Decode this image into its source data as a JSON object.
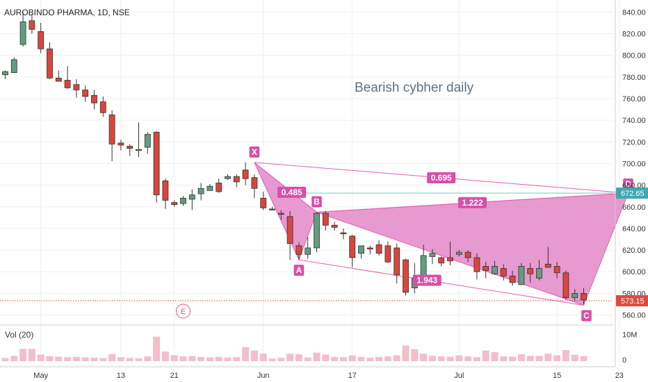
{
  "header": {
    "title": "AUROBINDO PHARMA, 1D, NSE"
  },
  "annotation_text": "Bearish cybher daily",
  "volume_label": "Vol (20)",
  "volume_axis": [
    "10M",
    "0"
  ],
  "price_tags": {
    "d_level": "672.65",
    "last_close": "573.15"
  },
  "colors": {
    "up": "#5f9e7e",
    "down": "#d8463c",
    "pattern_fill": "#e07ec3",
    "pattern_stroke": "#e05fad",
    "d_line": "#7ad1cf",
    "last_line": "#e53935",
    "grid": "#eef0f3",
    "volume": "#f2bfcb"
  },
  "chart_data": {
    "type": "candlestick",
    "title": "AUROBINDO PHARMA, 1D, NSE",
    "y_axis": {
      "ticks": [
        560,
        580,
        600,
        620,
        640,
        660,
        680,
        700,
        720,
        740,
        760,
        780,
        800,
        820,
        840
      ],
      "range": [
        552,
        846
      ],
      "side": "right"
    },
    "x_axis": {
      "ticks": [
        {
          "label": "May",
          "index": 4
        },
        {
          "label": "13",
          "index": 13
        },
        {
          "label": "21",
          "index": 19
        },
        {
          "label": "Jun",
          "index": 29
        },
        {
          "label": "17",
          "index": 39
        },
        {
          "label": "Jul",
          "index": 51
        },
        {
          "label": "15",
          "index": 62
        },
        {
          "label": "23",
          "index": 69
        }
      ]
    },
    "candles": [
      [
        782,
        786,
        778,
        785
      ],
      [
        784,
        798,
        784,
        796
      ],
      [
        810,
        840,
        808,
        831
      ],
      [
        832,
        838,
        820,
        824
      ],
      [
        822,
        830,
        802,
        806
      ],
      [
        806,
        812,
        778,
        779
      ],
      [
        779,
        786,
        776,
        776
      ],
      [
        777,
        790,
        769,
        770
      ],
      [
        773,
        778,
        761,
        768
      ],
      [
        768,
        772,
        757,
        762
      ],
      [
        763,
        768,
        750,
        756
      ],
      [
        757,
        762,
        743,
        747
      ],
      [
        745,
        749,
        702,
        718
      ],
      [
        719,
        722,
        712,
        717
      ],
      [
        716,
        718,
        707,
        714
      ],
      [
        712,
        738,
        706,
        713
      ],
      [
        715,
        729,
        709,
        727
      ],
      [
        729,
        730,
        664,
        671
      ],
      [
        684,
        686,
        658,
        666
      ],
      [
        664,
        666,
        660,
        662
      ],
      [
        663,
        670,
        661,
        668
      ],
      [
        667,
        676,
        657,
        671
      ],
      [
        672,
        682,
        666,
        677
      ],
      [
        675,
        681,
        676,
        679
      ],
      [
        682,
        686,
        673,
        674
      ],
      [
        686,
        690,
        685,
        688
      ],
      [
        688,
        690,
        678,
        683
      ],
      [
        694,
        701,
        680,
        686
      ],
      [
        687,
        690,
        668,
        677
      ],
      [
        668,
        674,
        657,
        659
      ],
      [
        658,
        660,
        657,
        657
      ],
      [
        654,
        657,
        648,
        653
      ],
      [
        651,
        656,
        611,
        626
      ],
      [
        624,
        627,
        611,
        616
      ],
      [
        616,
        632,
        612,
        622
      ],
      [
        622,
        655,
        618,
        654
      ],
      [
        654,
        656,
        638,
        643
      ],
      [
        643,
        646,
        638,
        641
      ],
      [
        636,
        640,
        630,
        635
      ],
      [
        633,
        634,
        604,
        613
      ],
      [
        617,
        624,
        612,
        624
      ],
      [
        622,
        624,
        616,
        621
      ],
      [
        625,
        629,
        615,
        617
      ],
      [
        624,
        628,
        608,
        609
      ],
      [
        622,
        626,
        589,
        597
      ],
      [
        611,
        612,
        578,
        581
      ],
      [
        585,
        608,
        580,
        594
      ],
      [
        591,
        625,
        590,
        615
      ],
      [
        614,
        621,
        607,
        617
      ],
      [
        613,
        614,
        605,
        608
      ],
      [
        613,
        628,
        606,
        610
      ],
      [
        616,
        620,
        614,
        618
      ],
      [
        618,
        620,
        609,
        613
      ],
      [
        613,
        617,
        593,
        600
      ],
      [
        605,
        609,
        594,
        601
      ],
      [
        598,
        610,
        597,
        605
      ],
      [
        603,
        607,
        592,
        596
      ],
      [
        596,
        601,
        587,
        590
      ],
      [
        588,
        608,
        588,
        605
      ],
      [
        603,
        608,
        590,
        598
      ],
      [
        594,
        611,
        592,
        603
      ],
      [
        607,
        623,
        605,
        604
      ],
      [
        605,
        609,
        594,
        599
      ],
      [
        599,
        601,
        574,
        576
      ],
      [
        576,
        584,
        573,
        580
      ],
      [
        580,
        585,
        570,
        574
      ]
    ],
    "volume": [
      1.2,
      2.0,
      4.6,
      4.6,
      2.5,
      1.9,
      1.7,
      1.5,
      1.6,
      1.4,
      1.3,
      1.1,
      2.7,
      1.5,
      1.2,
      1.1,
      1.8,
      9.2,
      3.6,
      2.2,
      1.8,
      1.9,
      1.6,
      1.4,
      1.6,
      1.4,
      1.5,
      5.3,
      4.0,
      2.8,
      1.0,
      1.3,
      2.8,
      2.6,
      1.4,
      3.2,
      2.5,
      1.6,
      1.5,
      2.2,
      1.6,
      1.3,
      1.6,
      1.8,
      2.2,
      5.9,
      4.5,
      2.8,
      2.0,
      1.8,
      1.7,
      2.2,
      1.8,
      1.5,
      4.0,
      3.4,
      1.8,
      1.7,
      2.6,
      2.0,
      2.0,
      2.8,
      2.2,
      4.2,
      2.4,
      1.9
    ],
    "volume_range": [
      0,
      12
    ],
    "harmonic_pattern": {
      "name": "Bearish cybher daily",
      "points": [
        {
          "label": "X",
          "index": 28,
          "price": 701
        },
        {
          "label": "A",
          "index": 33,
          "price": 611
        },
        {
          "label": "B",
          "index": 35,
          "price": 655
        },
        {
          "label": "C",
          "index": 65,
          "price": 569
        },
        {
          "label": "D",
          "index": 70,
          "price": 672.65
        }
      ],
      "ratios": [
        {
          "value": "0.485",
          "from": "X",
          "to": "B"
        },
        {
          "value": "1.222",
          "from": "B",
          "to": "D"
        },
        {
          "value": "0.695",
          "from": "X",
          "to": "D"
        },
        {
          "value": "1.943",
          "from": "A",
          "to": "C"
        }
      ]
    },
    "d_level": 672.65,
    "last_price": 573.15,
    "marker": {
      "label": "E",
      "index": 20
    },
    "grid": true
  }
}
